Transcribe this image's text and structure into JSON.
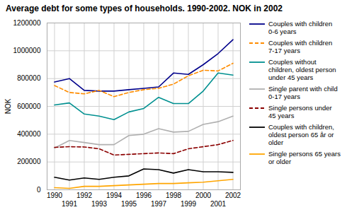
{
  "chart_data": {
    "type": "line",
    "title": "Average debt for some types of households. 1990-2002. NOK in 2002",
    "ylabel": "NOK",
    "x": [
      1990,
      1991,
      1992,
      1993,
      1994,
      1995,
      1996,
      1997,
      1998,
      1999,
      2000,
      2001,
      2002
    ],
    "series": [
      {
        "name": "Couples with children\n0-6 years",
        "color": "#00008B",
        "line_style": "solid",
        "values": [
          775000,
          800000,
          715000,
          710000,
          710000,
          720000,
          730000,
          740000,
          840000,
          830000,
          900000,
          980000,
          1080000
        ]
      },
      {
        "name": "Couples with children\n7-17 years",
        "color": "#FF8C00",
        "line_style": "dashed",
        "values": [
          750000,
          700000,
          690000,
          715000,
          670000,
          700000,
          720000,
          730000,
          760000,
          820000,
          860000,
          855000,
          910000
        ]
      },
      {
        "name": "Couples without\nchildren, oldest person\nunder 45 years",
        "color": "#009090",
        "line_style": "solid",
        "values": [
          610000,
          625000,
          545000,
          530000,
          505000,
          560000,
          585000,
          665000,
          620000,
          620000,
          710000,
          840000,
          825000
        ]
      },
      {
        "name": "Single parent with child\n0-17 years",
        "color": "#B0B0B0",
        "line_style": "solid",
        "values": [
          300000,
          355000,
          340000,
          325000,
          325000,
          390000,
          400000,
          440000,
          415000,
          420000,
          470000,
          490000,
          530000
        ]
      },
      {
        "name": "Single persons under\n45 years",
        "color": "#8B0000",
        "line_style": "dashed",
        "values": [
          305000,
          310000,
          308000,
          295000,
          250000,
          255000,
          260000,
          265000,
          260000,
          295000,
          310000,
          325000,
          355000
        ]
      },
      {
        "name": "Couples with children,\noldest person 65 år or\nolder",
        "color": "#000000",
        "line_style": "solid",
        "values": [
          90000,
          70000,
          85000,
          75000,
          90000,
          100000,
          150000,
          145000,
          120000,
          145000,
          130000,
          130000,
          125000
        ]
      },
      {
        "name": "Single persons 65 years\nor older",
        "color": "#FFA500",
        "line_style": "solid",
        "values": [
          15000,
          10000,
          25000,
          25000,
          30000,
          35000,
          40000,
          45000,
          45000,
          50000,
          55000,
          65000,
          75000
        ]
      }
    ],
    "xlim": [
      1989.5,
      2002.5
    ],
    "xticks": [
      1990,
      1991,
      1992,
      1993,
      1994,
      1995,
      1996,
      1997,
      1998,
      1999,
      2000,
      2001,
      2002
    ],
    "ylim": [
      0,
      1200000
    ],
    "yticks": [
      0,
      200000,
      400000,
      600000,
      800000,
      1000000,
      1200000
    ],
    "grid": true,
    "legend": "right"
  }
}
